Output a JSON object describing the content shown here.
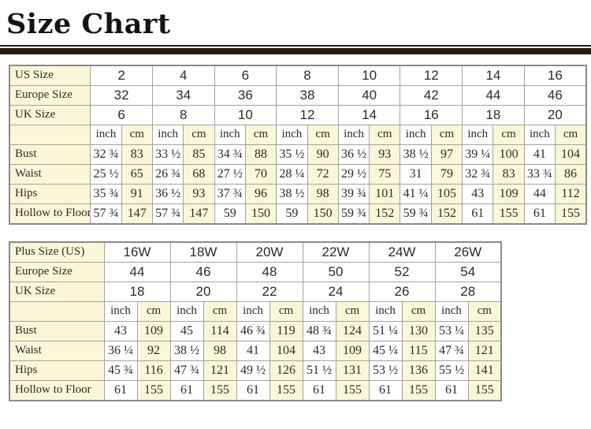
{
  "page": {
    "title": "Size Chart"
  },
  "colors": {
    "rule": "#2a1b16",
    "cream_cell": "#faf7d8",
    "white_cell": "#ffffff",
    "grid_border": "#a2a2a2",
    "outer_border": "#8a8a8a",
    "text": "#2b2b2b"
  },
  "tables": [
    {
      "name": "standard-sizes",
      "layout": {
        "label_col_width": 102,
        "data_col_width": 39,
        "total_width": 734
      },
      "size_rows": [
        {
          "label": "US Size",
          "values": [
            "2",
            "4",
            "6",
            "8",
            "10",
            "12",
            "14",
            "16"
          ]
        },
        {
          "label": "Europe Size",
          "values": [
            "32",
            "34",
            "36",
            "38",
            "40",
            "42",
            "44",
            "46"
          ]
        },
        {
          "label": "UK Size",
          "values": [
            "6",
            "8",
            "10",
            "12",
            "14",
            "16",
            "18",
            "20"
          ]
        }
      ],
      "unit_headers": [
        "inch",
        "cm"
      ],
      "measure_rows": [
        {
          "label": "Bust",
          "pairs": [
            [
              "32 ¾",
              "83"
            ],
            [
              "33 ½",
              "85"
            ],
            [
              "34 ¾",
              "88"
            ],
            [
              "35 ½",
              "90"
            ],
            [
              "36 ½",
              "93"
            ],
            [
              "38 ½",
              "97"
            ],
            [
              "39 ¼",
              "100"
            ],
            [
              "41",
              "104"
            ]
          ]
        },
        {
          "label": "Waist",
          "pairs": [
            [
              "25 ½",
              "65"
            ],
            [
              "26 ¾",
              "68"
            ],
            [
              "27 ½",
              "70"
            ],
            [
              "28 ¼",
              "72"
            ],
            [
              "29 ½",
              "75"
            ],
            [
              "31",
              "79"
            ],
            [
              "32 ¾",
              "83"
            ],
            [
              "33 ¾",
              "86"
            ]
          ]
        },
        {
          "label": "Hips",
          "pairs": [
            [
              "35 ¾",
              "91"
            ],
            [
              "36 ½",
              "93"
            ],
            [
              "37 ¾",
              "96"
            ],
            [
              "38 ½",
              "98"
            ],
            [
              "39 ¾",
              "101"
            ],
            [
              "41 ¼",
              "105"
            ],
            [
              "43",
              "109"
            ],
            [
              "44",
              "112"
            ]
          ]
        },
        {
          "label": "Hollow to Floor",
          "pairs": [
            [
              "57 ¾",
              "147"
            ],
            [
              "57 ¾",
              "147"
            ],
            [
              "59",
              "150"
            ],
            [
              "59",
              "150"
            ],
            [
              "59 ¾",
              "152"
            ],
            [
              "59 ¾",
              "152"
            ],
            [
              "61",
              "155"
            ],
            [
              "61",
              "155"
            ]
          ]
        }
      ]
    },
    {
      "name": "plus-sizes",
      "layout": {
        "label_col_width": 120,
        "data_col_width": 42,
        "total_width": 624
      },
      "size_rows": [
        {
          "label": "Plus Size (US)",
          "values": [
            "16W",
            "18W",
            "20W",
            "22W",
            "24W",
            "26W"
          ]
        },
        {
          "label": "Europe Size",
          "values": [
            "44",
            "46",
            "48",
            "50",
            "52",
            "54"
          ]
        },
        {
          "label": "UK Size",
          "values": [
            "18",
            "20",
            "22",
            "24",
            "26",
            "28"
          ]
        }
      ],
      "unit_headers": [
        "inch",
        "cm"
      ],
      "measure_rows": [
        {
          "label": "Bust",
          "pairs": [
            [
              "43",
              "109"
            ],
            [
              "45",
              "114"
            ],
            [
              "46 ¾",
              "119"
            ],
            [
              "48 ¾",
              "124"
            ],
            [
              "51 ¼",
              "130"
            ],
            [
              "53 ¼",
              "135"
            ]
          ]
        },
        {
          "label": "Waist",
          "pairs": [
            [
              "36 ¼",
              "92"
            ],
            [
              "38 ½",
              "98"
            ],
            [
              "41",
              "104"
            ],
            [
              "43",
              "109"
            ],
            [
              "45 ¼",
              "115"
            ],
            [
              "47 ¾",
              "121"
            ]
          ]
        },
        {
          "label": "Hips",
          "pairs": [
            [
              "45 ¾",
              "116"
            ],
            [
              "47 ¾",
              "121"
            ],
            [
              "49 ½",
              "126"
            ],
            [
              "51 ½",
              "131"
            ],
            [
              "53 ½",
              "136"
            ],
            [
              "55 ½",
              "141"
            ]
          ]
        },
        {
          "label": "Hollow to Floor",
          "pairs": [
            [
              "61",
              "155"
            ],
            [
              "61",
              "155"
            ],
            [
              "61",
              "155"
            ],
            [
              "61",
              "155"
            ],
            [
              "61",
              "155"
            ],
            [
              "61",
              "155"
            ]
          ]
        }
      ]
    }
  ]
}
